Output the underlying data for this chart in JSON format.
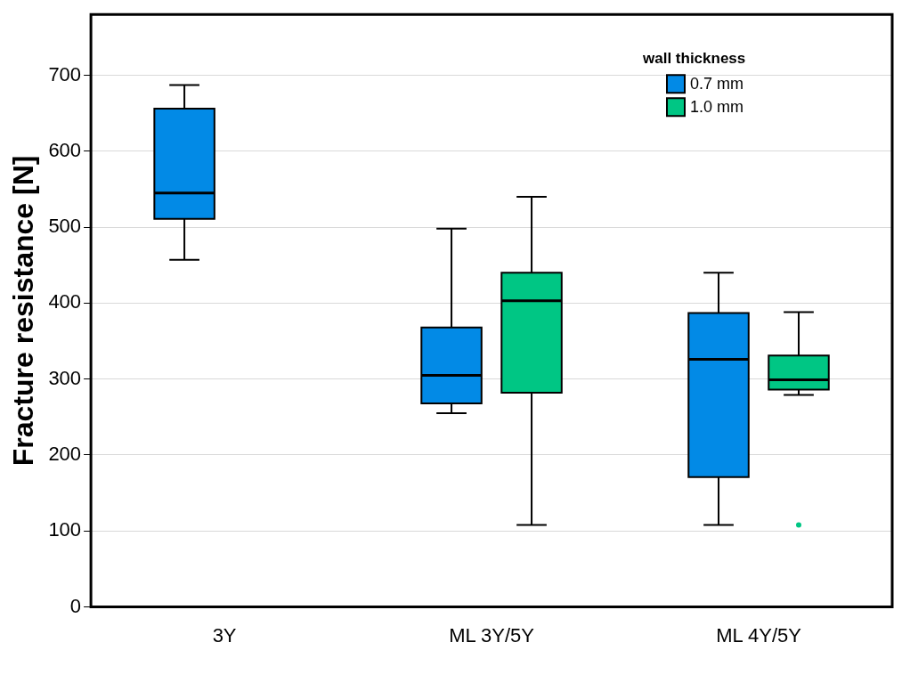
{
  "chart_data": {
    "type": "box",
    "ylabel": "Fracture resistance [N]",
    "legend_title": "wall thickness",
    "categories": [
      "3Y",
      "ML 3Y/5Y",
      "ML 4Y/5Y"
    ],
    "ylim": [
      0,
      780
    ],
    "yticks": [
      0,
      100,
      200,
      300,
      400,
      500,
      600,
      700
    ],
    "grid": "y",
    "legend": "top right",
    "series": [
      {
        "name": "0.7 mm",
        "color": "#028ae6",
        "boxes": [
          {
            "low": 457,
            "q1": 511,
            "median": 545,
            "q3": 656,
            "high": 687
          },
          {
            "low": 255,
            "q1": 268,
            "median": 305,
            "q3": 368,
            "high": 498
          },
          {
            "low": 108,
            "q1": 171,
            "median": 326,
            "q3": 387,
            "high": 440
          }
        ]
      },
      {
        "name": "1.0 mm",
        "color": "#00c684",
        "boxes": [
          null,
          {
            "low": 108,
            "q1": 282,
            "median": 403,
            "q3": 440,
            "high": 540
          },
          {
            "low": 279,
            "q1": 286,
            "median": 299,
            "q3": 331,
            "high": 388,
            "outliers": [
              108
            ]
          }
        ]
      }
    ]
  }
}
